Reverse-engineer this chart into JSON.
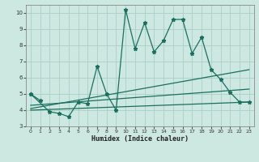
{
  "background_color": "#cce8e0",
  "grid_color": "#aacfc8",
  "line_color": "#1a7060",
  "xlabel": "Humidex (Indice chaleur)",
  "ylim": [
    3,
    10.5
  ],
  "xlim": [
    -0.5,
    23.5
  ],
  "yticks": [
    3,
    4,
    5,
    6,
    7,
    8,
    9,
    10
  ],
  "xticks": [
    0,
    1,
    2,
    3,
    4,
    5,
    6,
    7,
    8,
    9,
    10,
    11,
    12,
    13,
    14,
    15,
    16,
    17,
    18,
    19,
    20,
    21,
    22,
    23
  ],
  "series": [
    {
      "x": [
        0,
        1
      ],
      "y": [
        5.0,
        4.6
      ],
      "marker": true
    },
    {
      "x": [
        0,
        2,
        3,
        4,
        5,
        6,
        7,
        8,
        9,
        10,
        11,
        12,
        13,
        14,
        15,
        16,
        17,
        18,
        19,
        20,
        21,
        22,
        23
      ],
      "y": [
        5.0,
        3.9,
        3.8,
        3.6,
        4.5,
        4.4,
        6.7,
        5.0,
        4.0,
        10.2,
        7.8,
        9.4,
        7.6,
        8.3,
        9.6,
        9.6,
        7.5,
        8.5,
        6.5,
        5.9,
        5.1,
        4.5,
        4.5
      ],
      "marker": true
    },
    {
      "x": [
        0,
        23
      ],
      "y": [
        4.1,
        6.5
      ],
      "marker": false
    },
    {
      "x": [
        0,
        23
      ],
      "y": [
        4.3,
        5.3
      ],
      "marker": false
    },
    {
      "x": [
        0,
        23
      ],
      "y": [
        4.0,
        4.5
      ],
      "marker": false
    }
  ]
}
